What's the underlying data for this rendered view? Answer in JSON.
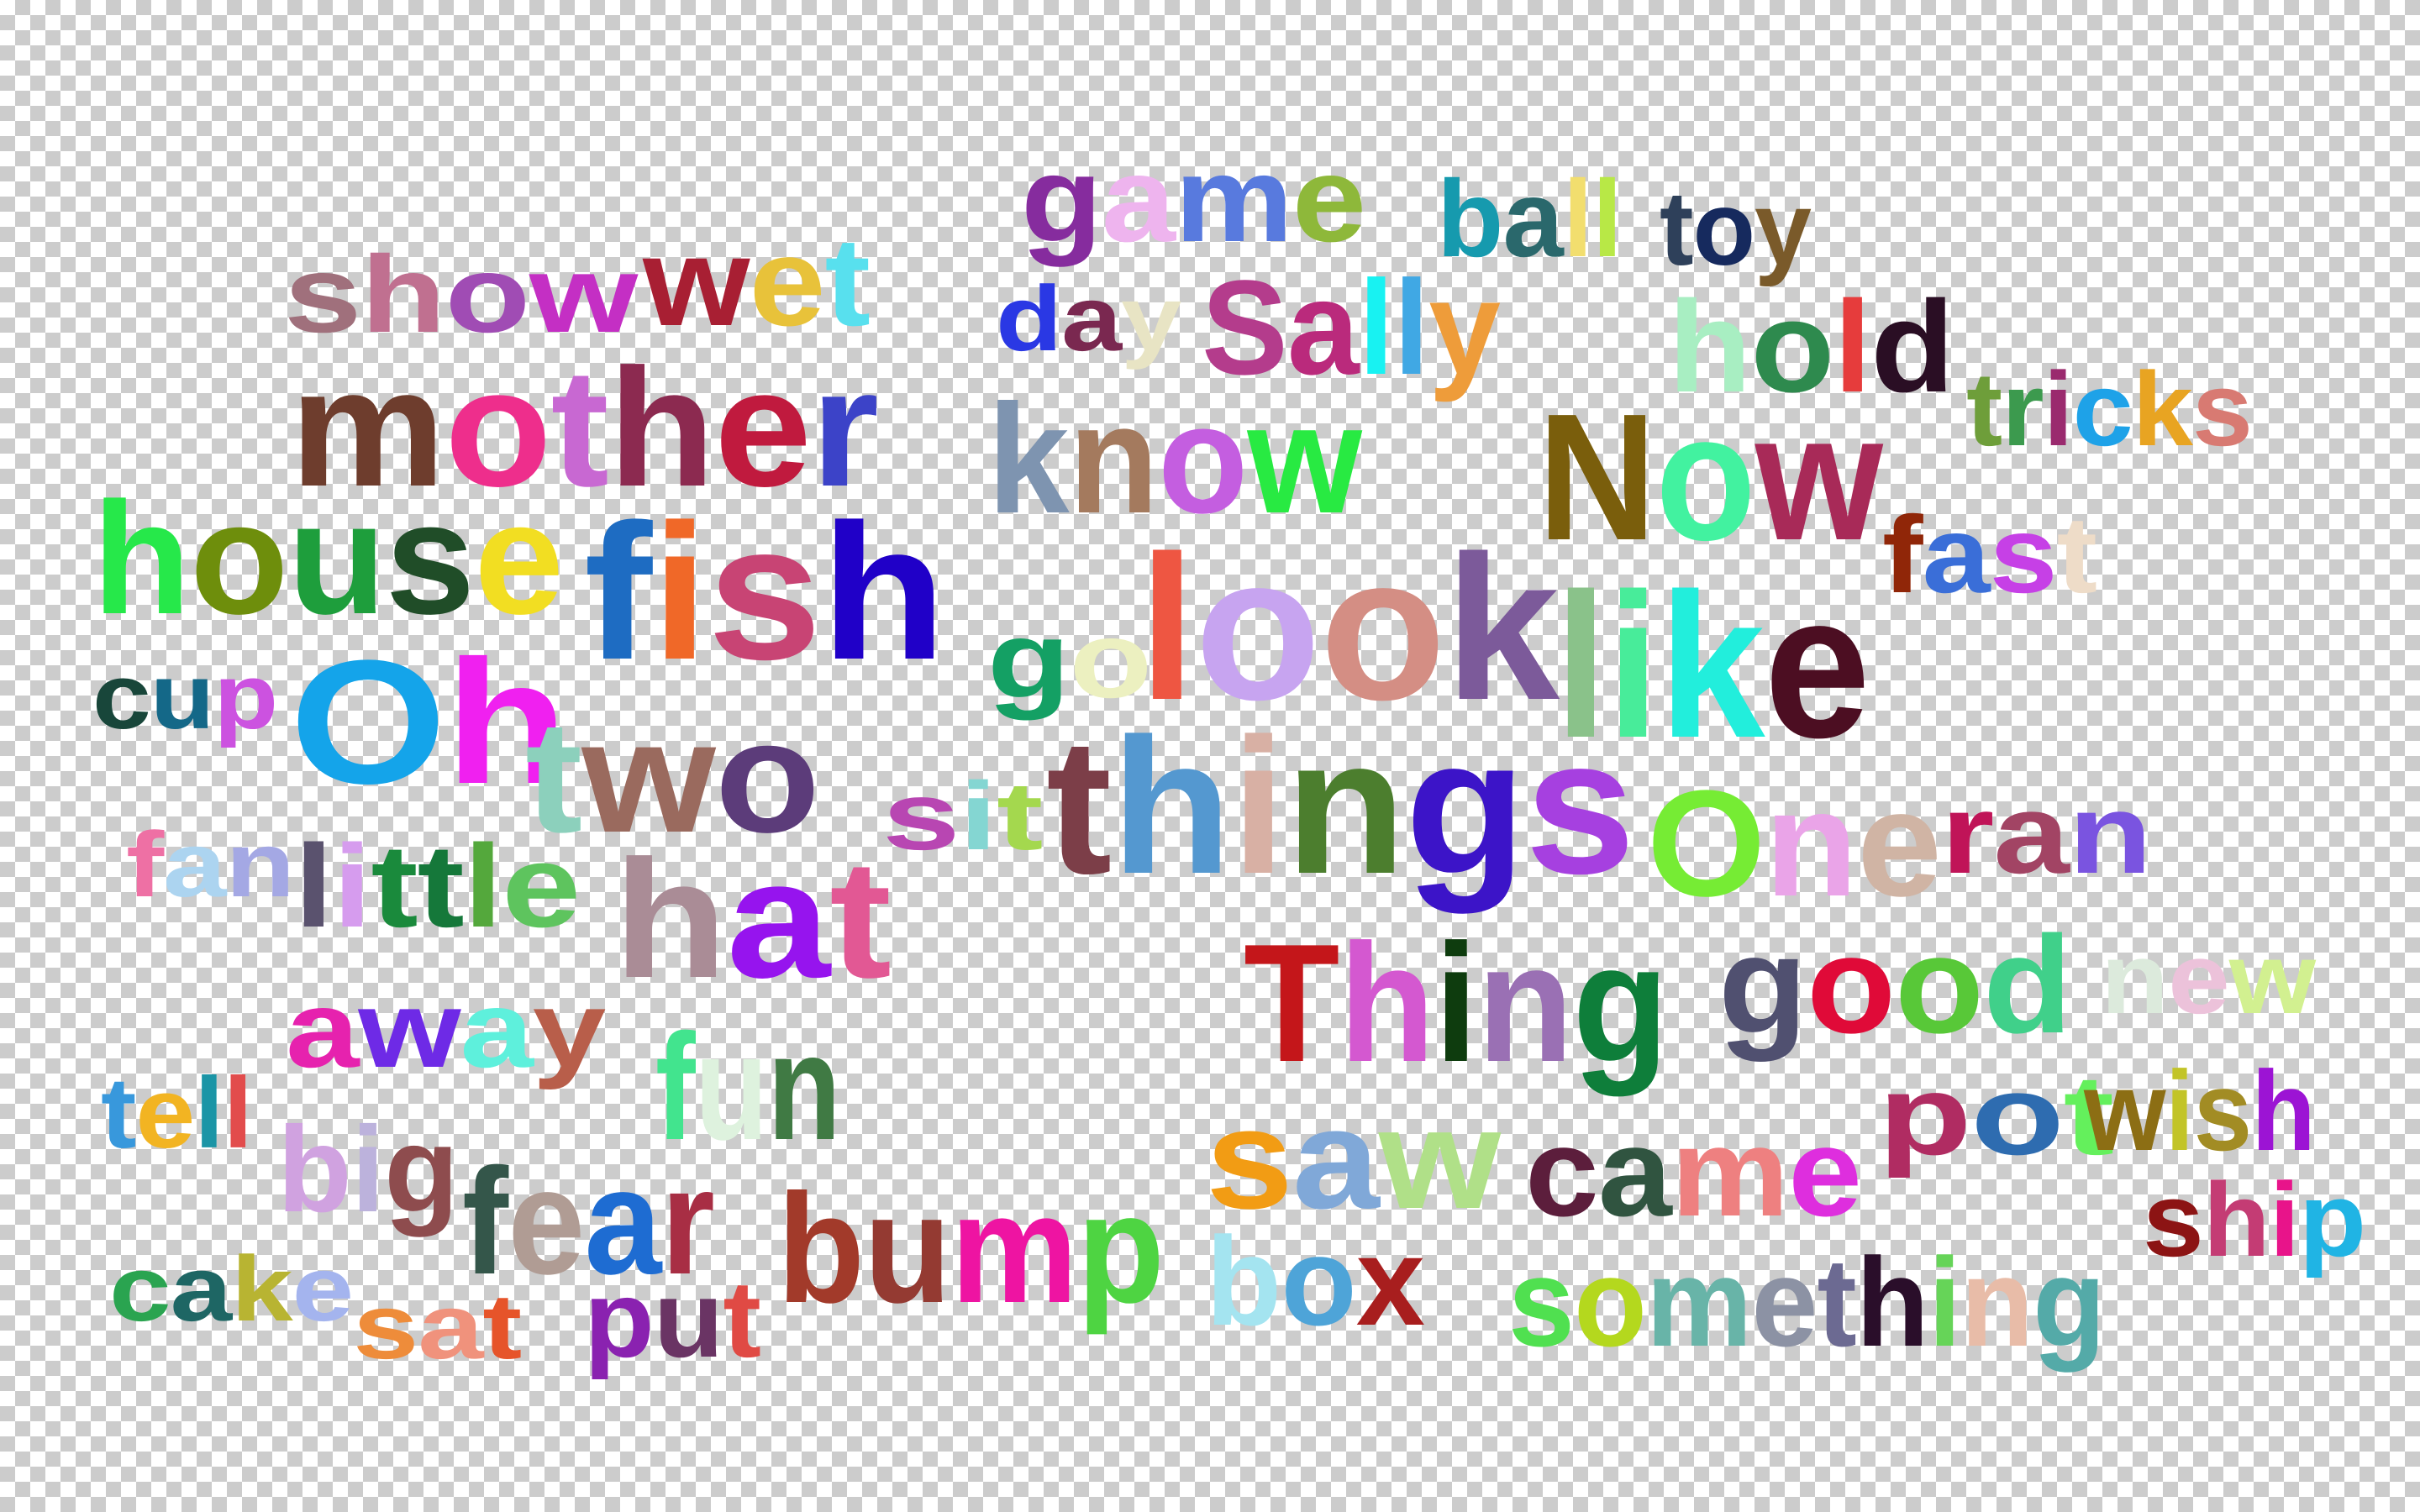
{
  "words": [
    {
      "text": "show",
      "letter_colors": [
        "#a0707c",
        "#c07090",
        "#a04cb4",
        "#c42fc4"
      ]
    },
    {
      "text": "wet",
      "letter_colors": [
        "#a81f33",
        "#e8c23a",
        "#58e0ee"
      ]
    },
    {
      "text": "mother",
      "letter_colors": [
        "#6e3d2d",
        "#ee2e8c",
        "#c868d2",
        "#8c2a50",
        "#c01a3e",
        "#3c43c8"
      ]
    },
    {
      "text": "house",
      "letter_colors": [
        "#26e84a",
        "#6e8e0c",
        "#1e9e3c",
        "#204d28",
        "#f2de22"
      ]
    },
    {
      "text": "fish",
      "letter_colors": [
        "#1e6cc2",
        "#f06828",
        "#c84474",
        "#2000c8"
      ]
    },
    {
      "text": "cup",
      "letter_colors": [
        "#18463a",
        "#146888",
        "#cc52e0"
      ]
    },
    {
      "text": "Oh",
      "letter_colors": [
        "#14a4ea",
        "#f020f0"
      ]
    },
    {
      "text": "two",
      "letter_colors": [
        "#8cd0bc",
        "#9a6a5e",
        "#5c3c7a"
      ]
    },
    {
      "text": "fan",
      "letter_colors": [
        "#ee70a4",
        "#acd4f0",
        "#a4a8e4"
      ]
    },
    {
      "text": "little",
      "letter_colors": [
        "#5a526e",
        "#d69cee",
        "#1a8a3c",
        "#15783a",
        "#54a83c",
        "#5ec45e"
      ]
    },
    {
      "text": "hat",
      "letter_colors": [
        "#aa8c96",
        "#9614ee",
        "#e25894"
      ]
    },
    {
      "text": "away",
      "letter_colors": [
        "#e622ae",
        "#6e2ae6",
        "#5ef0dc",
        "#b85e4a"
      ]
    },
    {
      "text": "tell",
      "letter_colors": [
        "#3898dc",
        "#f2b422",
        "#1b95a6",
        "#e24c4c"
      ]
    },
    {
      "text": "big",
      "letter_colors": [
        "#d0a2e0",
        "#bcb2dc",
        "#8e4c4e"
      ]
    },
    {
      "text": "fun",
      "letter_colors": [
        "#42e48e",
        "#def2de",
        "#407a44"
      ]
    },
    {
      "text": "fear",
      "letter_colors": [
        "#34564a",
        "#b09c94",
        "#1e6cd2",
        "#a82e44"
      ]
    },
    {
      "text": "bump",
      "letter_colors": [
        "#a23a2a",
        "#943a32",
        "#ee14a2",
        "#4ed442"
      ]
    },
    {
      "text": "cake",
      "letter_colors": [
        "#2aa450",
        "#1e6664",
        "#b8b432",
        "#a4b4ee"
      ]
    },
    {
      "text": "sat",
      "letter_colors": [
        "#ee8c3a",
        "#f0927c",
        "#e6542a"
      ]
    },
    {
      "text": "put",
      "letter_colors": [
        "#8a22b0",
        "#6a3464",
        "#e04a44"
      ]
    },
    {
      "text": "game",
      "letter_colors": [
        "#862c9e",
        "#eeb4ee",
        "#587ade",
        "#8eb83a"
      ]
    },
    {
      "text": "ball",
      "letter_colors": [
        "#169aae",
        "#2a686c",
        "#f2de6e",
        "#b8e846"
      ]
    },
    {
      "text": "toy",
      "letter_colors": [
        "#2e405a",
        "#162a5e",
        "#7a5a2a"
      ]
    },
    {
      "text": "day",
      "letter_colors": [
        "#2a38e4",
        "#7a2850",
        "#e8e4c4"
      ]
    },
    {
      "text": "Sally",
      "letter_colors": [
        "#b43c8c",
        "#ba2a7c",
        "#18f2f2",
        "#40a8e4",
        "#ee9c3a"
      ]
    },
    {
      "text": "hold",
      "letter_colors": [
        "#a8eec2",
        "#2e8a4e",
        "#e63c3c",
        "#2a0e24"
      ]
    },
    {
      "text": "tricks",
      "letter_colors": [
        "#6e9e3a",
        "#3c9a4e",
        "#9a2a6e",
        "#1ea2e8",
        "#e8a422",
        "#d87a72"
      ]
    },
    {
      "text": "know",
      "letter_colors": [
        "#7e94b0",
        "#a47a5e",
        "#c45ee0",
        "#28ea42"
      ]
    },
    {
      "text": "Now",
      "letter_colors": [
        "#7a5e0c",
        "#42f2a0",
        "#a82a58"
      ]
    },
    {
      "text": "fast",
      "letter_colors": [
        "#902608",
        "#3a6ed8",
        "#c640e6",
        "#eedcc8"
      ]
    },
    {
      "text": "go",
      "letter_colors": [
        "#14a064",
        "#ecf0c0"
      ]
    },
    {
      "text": "look",
      "letter_colors": [
        "#ee5642",
        "#c7a4f0",
        "#d48e84",
        "#7c5a9a"
      ]
    },
    {
      "text": "like",
      "letter_colors": [
        "#8ac28a",
        "#48ec9a",
        "#22eedc",
        "#4c0e22"
      ]
    },
    {
      "text": "sit",
      "letter_colors": [
        "#b846b2",
        "#84d6d2",
        "#a4d84e"
      ]
    },
    {
      "text": "things",
      "letter_colors": [
        "#7c3e48",
        "#5498d0",
        "#d8b0a4",
        "#4c7e2e",
        "#3c14c8",
        "#a640e0"
      ]
    },
    {
      "text": "One",
      "letter_colors": [
        "#76ec34",
        "#eaa4e8",
        "#d0b4a4"
      ]
    },
    {
      "text": "ran",
      "letter_colors": [
        "#c01458",
        "#a24464",
        "#7a54e0"
      ]
    },
    {
      "text": "Thing",
      "letter_colors": [
        "#c4161a",
        "#d458d0",
        "#0e3c0e",
        "#9a70b4",
        "#0e7e3a"
      ]
    },
    {
      "text": "good",
      "letter_colors": [
        "#505070",
        "#e00a38",
        "#58c838",
        "#40d08a"
      ]
    },
    {
      "text": "new",
      "letter_colors": [
        "#dceadc",
        "#ecc2da",
        "#d2f090"
      ]
    },
    {
      "text": "saw",
      "letter_colors": [
        "#f29c14",
        "#80a8d8",
        "#b0e088"
      ]
    },
    {
      "text": "came",
      "letter_colors": [
        "#5c1e3c",
        "#305440",
        "#ee8080",
        "#de2ede"
      ]
    },
    {
      "text": "pot",
      "letter_colors": [
        "#b02c62",
        "#2e6cb0",
        "#64f05c"
      ]
    },
    {
      "text": "wish",
      "letter_colors": [
        "#8c6e14",
        "#c2c428",
        "#a28c24",
        "#9c14d4"
      ]
    },
    {
      "text": "ship",
      "letter_colors": [
        "#8c1414",
        "#c43c74",
        "#e8148a",
        "#20b4e4"
      ]
    },
    {
      "text": "box",
      "letter_colors": [
        "#a4e4f0",
        "#4ea4d8",
        "#a81e1e"
      ]
    },
    {
      "text": "something",
      "letter_colors": [
        "#50e050",
        "#b4d81e",
        "#68b4a8",
        "#8c92a4",
        "#6c6a92",
        "#2a0e2a",
        "#66d458",
        "#e8bca8",
        "#54aaa8"
      ]
    }
  ]
}
